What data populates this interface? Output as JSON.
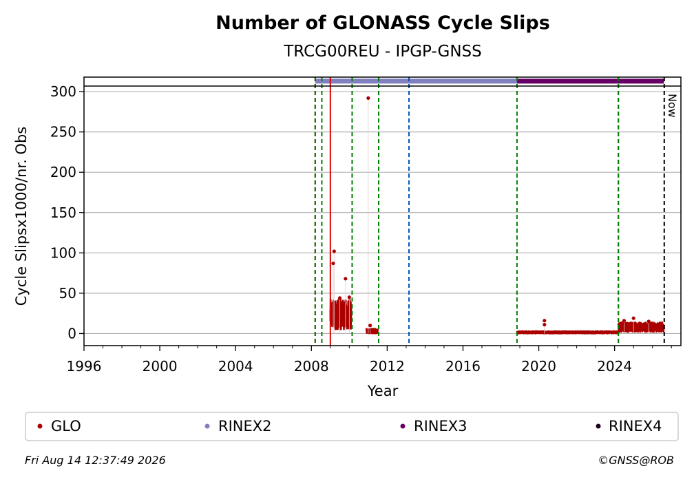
{
  "chart_data": {
    "type": "scatter",
    "title": "Number of GLONASS Cycle Slips",
    "subtitle": "TRCG00REU - IPGP-GNSS",
    "xlabel": "Year",
    "ylabel": "Cycle Slipsx1000/nr. Obs",
    "xlim": [
      1996,
      2027.5
    ],
    "ylim": [
      -15,
      318
    ],
    "x_ticks": [
      "1996",
      "2000",
      "2004",
      "2008",
      "2012",
      "2016",
      "2020",
      "2024"
    ],
    "x_tick_values": [
      1996,
      2000,
      2004,
      2008,
      2012,
      2016,
      2020,
      2024
    ],
    "y_ticks": [
      "0",
      "50",
      "100",
      "150",
      "200",
      "250",
      "300"
    ],
    "y_tick_values": [
      0,
      50,
      100,
      150,
      200,
      250,
      300
    ],
    "grid": "horizontal",
    "now_label": "Now",
    "now_x": 2026.62,
    "series": [
      {
        "name": "GLO",
        "color": "#aa0000",
        "segments": [
          {
            "x_start": 2009.0,
            "x_end": 2010.1,
            "y_low": 5,
            "y_high": 42
          },
          {
            "x_start": 2010.9,
            "x_end": 2011.5,
            "y_low": 0,
            "y_high": 6
          },
          {
            "x_start": 2018.85,
            "x_end": 2024.2,
            "y_low": 0,
            "y_high": 3
          },
          {
            "x_start": 2024.2,
            "x_end": 2026.6,
            "y_low": 2,
            "y_high": 14
          }
        ],
        "points": [
          {
            "x": 2009.2,
            "y": 102
          },
          {
            "x": 2009.15,
            "y": 87
          },
          {
            "x": 2009.8,
            "y": 68
          },
          {
            "x": 2010.0,
            "y": 45
          },
          {
            "x": 2009.5,
            "y": 44
          },
          {
            "x": 2011.0,
            "y": 292
          },
          {
            "x": 2011.1,
            "y": 10
          },
          {
            "x": 2020.3,
            "y": 16
          },
          {
            "x": 2020.3,
            "y": 11
          },
          {
            "x": 2025.0,
            "y": 19
          },
          {
            "x": 2024.5,
            "y": 16
          },
          {
            "x": 2025.8,
            "y": 15
          }
        ]
      },
      {
        "name": "RINEX2",
        "color": "#8080c0",
        "x_start": 2008.2,
        "x_end": 2018.85,
        "y": 313
      },
      {
        "name": "RINEX3",
        "color": "#660066",
        "x_start": 2018.85,
        "x_end": 2026.6,
        "y": 313
      },
      {
        "name": "RINEX4",
        "color": "#220022"
      }
    ],
    "event_lines": [
      {
        "x": 2008.2,
        "color": "#aa0000",
        "style": "dashed"
      },
      {
        "x": 2008.2,
        "color": "#008000",
        "style": "dashed"
      },
      {
        "x": 2008.55,
        "color": "#008000",
        "style": "dashed"
      },
      {
        "x": 2009.0,
        "color": "#dd0000",
        "style": "solid"
      },
      {
        "x": 2010.15,
        "color": "#008000",
        "style": "dashed"
      },
      {
        "x": 2011.55,
        "color": "#008000",
        "style": "dashed"
      },
      {
        "x": 2013.15,
        "color": "#0055bb",
        "style": "dashed"
      },
      {
        "x": 2018.85,
        "color": "#008000",
        "style": "dashed"
      },
      {
        "x": 2024.2,
        "color": "#aa0000",
        "style": "dashed"
      },
      {
        "x": 2024.2,
        "color": "#008000",
        "style": "dashed"
      }
    ],
    "legend": {
      "placement": "bottom",
      "entries": [
        "GLO",
        "RINEX2",
        "RINEX3",
        "RINEX4"
      ]
    }
  },
  "footer": {
    "timestamp": "Fri Aug 14 12:37:49 2026",
    "credit": "©GNSS@ROB"
  }
}
